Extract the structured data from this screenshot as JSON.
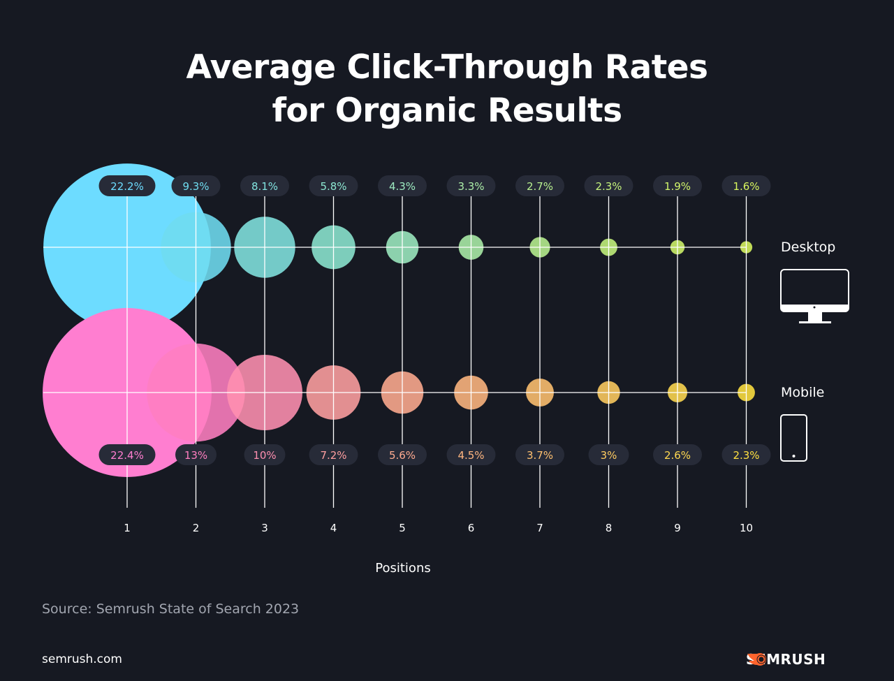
{
  "title_lines": [
    "Average Click-Through Rates",
    "for Organic Results"
  ],
  "chart_data": {
    "type": "bubble",
    "title": "Average Click-Through Rates for Organic Results",
    "xlabel": "Positions",
    "categories": [
      "1",
      "2",
      "3",
      "4",
      "5",
      "6",
      "7",
      "8",
      "9",
      "10"
    ],
    "series": [
      {
        "name": "Desktop",
        "values": [
          22.2,
          9.3,
          8.1,
          5.8,
          4.3,
          3.3,
          2.7,
          2.3,
          1.9,
          1.6
        ],
        "labels": [
          "22.2%",
          "9.3%",
          "8.1%",
          "5.8%",
          "4.3%",
          "3.3%",
          "2.7%",
          "2.3%",
          "1.9%",
          "1.6%"
        ],
        "colors": [
          "#6ddcff",
          "#6fdcf0",
          "#82e3df",
          "#8ce6d0",
          "#9deac0",
          "#acee a8",
          "#b8f090",
          "#c4f27c",
          "#d0f46a",
          "#d8f55e"
        ]
      },
      {
        "name": "Mobile",
        "values": [
          22.4,
          13,
          10,
          7.2,
          5.6,
          4.5,
          3.7,
          3,
          2.6,
          2.3
        ],
        "labels": [
          "22.4%",
          "13%",
          "10%",
          "7.2%",
          "5.6%",
          "4.5%",
          "3.7%",
          "3%",
          "2.6%",
          "2.3%"
        ],
        "colors": [
          "#ff7ed0",
          "#ff7ec0",
          "#ff8fb0",
          "#ff9fa0",
          "#ffab90",
          "#ffb680",
          "#ffc070",
          "#ffcc60",
          "#ffd850",
          "#ffe040"
        ]
      }
    ],
    "label_bg": "#272b38",
    "grid_color": "#ffffff"
  },
  "legend": {
    "desktop": "Desktop",
    "mobile": "Mobile",
    "desktop_icon": "desktop-monitor-icon",
    "mobile_icon": "smartphone-icon"
  },
  "source": "Source: Semrush State of Search 2023",
  "site": "semrush.com",
  "brand": {
    "name": "SEMRUSH",
    "color": "#ff642d"
  }
}
